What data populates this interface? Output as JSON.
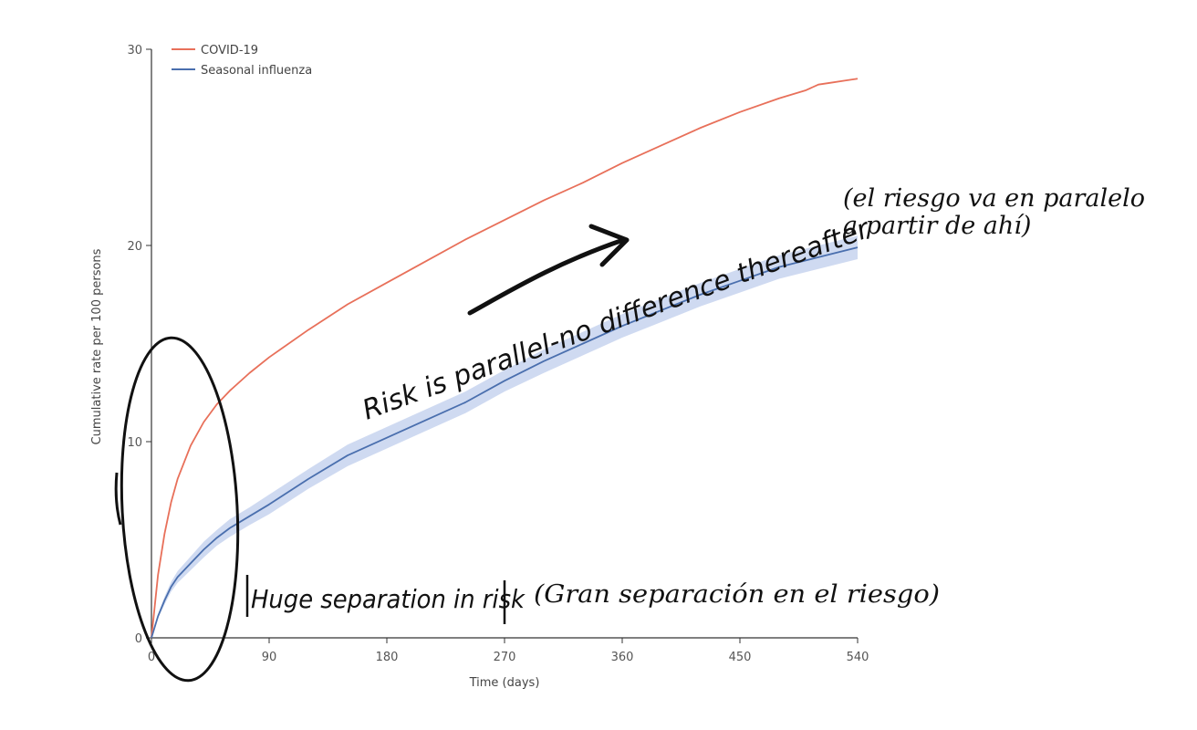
{
  "chart_data": {
    "type": "line",
    "xlabel": "Time (days)",
    "ylabel": "Cumulative rate per 100 persons",
    "xlim": [
      0,
      540
    ],
    "ylim": [
      0,
      30
    ],
    "xticks": [
      0,
      90,
      180,
      270,
      360,
      450,
      540
    ],
    "yticks": [
      0,
      10,
      20,
      30
    ],
    "legend_position": "top-left",
    "grid": false,
    "series": [
      {
        "name": "COVID-19",
        "color": "#e8705a",
        "x": [
          0,
          5,
          10,
          15,
          20,
          30,
          40,
          50,
          60,
          75,
          90,
          120,
          150,
          180,
          210,
          240,
          270,
          300,
          330,
          360,
          390,
          420,
          450,
          480,
          500,
          510,
          520,
          530,
          540
        ],
        "y": [
          0,
          3.2,
          5.3,
          6.9,
          8.1,
          9.8,
          11.0,
          11.9,
          12.6,
          13.5,
          14.3,
          15.7,
          17.0,
          18.1,
          19.2,
          20.3,
          21.3,
          22.3,
          23.2,
          24.2,
          25.1,
          26.0,
          26.8,
          27.5,
          27.9,
          28.2,
          28.3,
          28.4,
          28.5
        ]
      },
      {
        "name": "Seasonal influenza",
        "color": "#4a6fae",
        "band_color": "#c7d3ee",
        "x": [
          0,
          5,
          10,
          15,
          20,
          30,
          40,
          50,
          60,
          75,
          90,
          120,
          150,
          180,
          210,
          240,
          270,
          300,
          330,
          360,
          390,
          420,
          450,
          480,
          510,
          540
        ],
        "y": [
          0,
          1.1,
          1.9,
          2.6,
          3.1,
          3.8,
          4.5,
          5.1,
          5.6,
          6.2,
          6.8,
          8.1,
          9.3,
          10.2,
          11.1,
          12.0,
          13.1,
          14.1,
          15.0,
          15.9,
          16.7,
          17.5,
          18.2,
          18.9,
          19.4,
          19.9
        ],
        "band": [
          0,
          0.1,
          0.2,
          0.25,
          0.3,
          0.35,
          0.4,
          0.4,
          0.45,
          0.45,
          0.5,
          0.5,
          0.55,
          0.55,
          0.55,
          0.55,
          0.55,
          0.6,
          0.6,
          0.6,
          0.6,
          0.6,
          0.6,
          0.6,
          0.6,
          0.6
        ]
      }
    ],
    "annotations": {
      "arrow_text": "Risk is parallel-no difference thereafter",
      "translation_parallel": [
        "(el riesgo va en paralelo",
        "a partir de ahí)"
      ],
      "separation_text": "Huge separation in risk",
      "translation_separation": "(Gran separación en el riesgo)"
    }
  }
}
